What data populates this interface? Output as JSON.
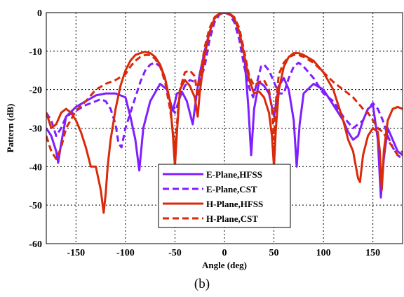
{
  "caption": "(b)",
  "chart_data": {
    "type": "line",
    "xlabel": "Angle (deg)",
    "ylabel": "Pattern (dB)",
    "xlim": [
      -180,
      180
    ],
    "ylim": [
      -60,
      0
    ],
    "xticks": [
      -150,
      -100,
      -50,
      0,
      50,
      100,
      150
    ],
    "yticks": [
      0,
      -10,
      -20,
      -30,
      -40,
      -50,
      -60
    ],
    "grid": true,
    "legend_position": "lower-center",
    "series": [
      {
        "name": "E-Plane,HFSS",
        "color": "#7f1fff",
        "style": "solid",
        "x": [
          -180,
          -175,
          -170,
          -168,
          -165,
          -160,
          -150,
          -140,
          -130,
          -120,
          -110,
          -100,
          -95,
          -90,
          -86,
          -82,
          -75,
          -65,
          -58,
          -55,
          -52,
          -48,
          -43,
          -38,
          -32,
          -28,
          -25,
          -20,
          -15,
          -10,
          -5,
          0,
          5,
          10,
          15,
          20,
          24,
          27,
          30,
          35,
          40,
          45,
          50,
          55,
          60,
          65,
          70,
          73,
          76,
          80,
          90,
          100,
          110,
          120,
          125,
          130,
          135,
          140,
          145,
          150,
          155,
          158,
          161,
          165,
          170,
          175,
          180
        ],
        "y": [
          -30,
          -32,
          -36,
          -39,
          -34,
          -27,
          -24.5,
          -23,
          -21.5,
          -21,
          -21,
          -22,
          -27,
          -33,
          -41,
          -30,
          -23,
          -18.5,
          -20,
          -23,
          -25.5,
          -21,
          -20.5,
          -23,
          -29,
          -21,
          -16,
          -10,
          -5,
          -1.5,
          -0.3,
          0,
          -0.3,
          -1.5,
          -5,
          -11,
          -24,
          -37,
          -25,
          -18,
          -19,
          -21,
          -27,
          -19,
          -17,
          -20,
          -28,
          -40,
          -29,
          -21,
          -18.5,
          -20,
          -24,
          -28,
          -31,
          -33,
          -32,
          -28,
          -25,
          -24,
          -33,
          -48,
          -38,
          -30,
          -33,
          -36,
          -37
        ]
      },
      {
        "name": "E-Plane,CST",
        "color": "#7f1fff",
        "style": "dashed",
        "x": [
          -180,
          -175,
          -170,
          -165,
          -160,
          -150,
          -140,
          -130,
          -125,
          -120,
          -115,
          -110,
          -107,
          -104,
          -100,
          -95,
          -90,
          -85,
          -80,
          -75,
          -70,
          -65,
          -60,
          -57,
          -53,
          -50,
          -45,
          -40,
          -35,
          -30,
          -25,
          -20,
          -15,
          -10,
          -5,
          0,
          5,
          10,
          15,
          20,
          25,
          29,
          33,
          37,
          40,
          45,
          50,
          55,
          60,
          65,
          70,
          75,
          80,
          90,
          100,
          110,
          120,
          130,
          140,
          145,
          150,
          155,
          160,
          165,
          170,
          175,
          180
        ],
        "y": [
          -26,
          -28,
          -32,
          -30,
          -27,
          -25.5,
          -24,
          -23,
          -22.5,
          -23,
          -25,
          -29,
          -34,
          -35,
          -30,
          -26,
          -22,
          -18,
          -15,
          -13.5,
          -13,
          -14,
          -17,
          -21,
          -25,
          -26,
          -22,
          -19,
          -17.5,
          -18,
          -18,
          -14,
          -7,
          -2.5,
          -0.5,
          0,
          -0.5,
          -2.5,
          -7,
          -14,
          -19.5,
          -22,
          -18,
          -14,
          -13.5,
          -15,
          -18,
          -21,
          -21,
          -17,
          -14,
          -13,
          -14,
          -17,
          -21,
          -23,
          -27,
          -30,
          -28,
          -25,
          -23.5,
          -25,
          -28,
          -32,
          -35,
          -37,
          -38
        ]
      },
      {
        "name": "H-Plane,HFSS",
        "color": "#d92a0a",
        "style": "solid",
        "x": [
          -180,
          -175,
          -170,
          -165,
          -160,
          -155,
          -150,
          -145,
          -140,
          -135,
          -130,
          -125,
          -122,
          -120,
          -118,
          -115,
          -110,
          -105,
          -100,
          -95,
          -90,
          -85,
          -80,
          -75,
          -70,
          -65,
          -60,
          -55,
          -52,
          -50,
          -48,
          -45,
          -40,
          -35,
          -30,
          -27,
          -25,
          -20,
          -15,
          -10,
          -5,
          0,
          5,
          10,
          15,
          20,
          25,
          30,
          35,
          40,
          45,
          48,
          50,
          52,
          55,
          60,
          65,
          70,
          75,
          80,
          90,
          100,
          110,
          120,
          125,
          130,
          135,
          137,
          140,
          145,
          150,
          155,
          157,
          159,
          161,
          165,
          170,
          175,
          180
        ],
        "y": [
          -26,
          -30,
          -29,
          -26,
          -25,
          -26,
          -28,
          -31,
          -35,
          -40,
          -40,
          -46,
          -52,
          -47,
          -40,
          -33,
          -25,
          -19,
          -15,
          -12.5,
          -11,
          -10.5,
          -10.2,
          -10.5,
          -11.5,
          -13.5,
          -17,
          -23,
          -32,
          -40,
          -31,
          -20,
          -17.5,
          -19,
          -22,
          -27,
          -21,
          -11,
          -5,
          -1.5,
          -0.3,
          0,
          -0.3,
          -1.5,
          -5,
          -11,
          -17.5,
          -21,
          -20.5,
          -22,
          -26,
          -32,
          -40,
          -30,
          -20,
          -14,
          -11.5,
          -10.5,
          -10.5,
          -11,
          -12.5,
          -15.5,
          -20,
          -28,
          -33,
          -36,
          -43,
          -44,
          -37,
          -32,
          -30,
          -31,
          -36,
          -46,
          -36,
          -28,
          -25,
          -24.5,
          -25
        ]
      },
      {
        "name": "H-Plane,CST",
        "color": "#d92a0a",
        "style": "dashed",
        "x": [
          -180,
          -175,
          -170,
          -165,
          -160,
          -150,
          -140,
          -130,
          -120,
          -110,
          -100,
          -95,
          -90,
          -85,
          -80,
          -75,
          -70,
          -65,
          -60,
          -55,
          -50,
          -45,
          -40,
          -35,
          -30,
          -27,
          -25,
          -20,
          -15,
          -10,
          -5,
          0,
          5,
          10,
          15,
          20,
          25,
          30,
          35,
          40,
          45,
          48,
          50,
          52,
          55,
          60,
          65,
          70,
          75,
          80,
          90,
          100,
          110,
          120,
          130,
          140,
          145,
          150,
          155,
          160,
          165,
          170,
          175,
          180
        ],
        "y": [
          -32,
          -36,
          -38,
          -35,
          -30,
          -25.5,
          -23,
          -20,
          -18.5,
          -17.5,
          -16,
          -14,
          -12.5,
          -11.5,
          -11,
          -11,
          -12,
          -14,
          -18,
          -25,
          -35,
          -20,
          -15.5,
          -15,
          -16.5,
          -22,
          -17,
          -9,
          -4,
          -1.2,
          -0.2,
          0,
          -0.2,
          -1.2,
          -4,
          -10,
          -16.5,
          -19,
          -18,
          -17.5,
          -20,
          -25,
          -33,
          -23,
          -16,
          -13,
          -11.5,
          -11,
          -11,
          -11.5,
          -13,
          -15.5,
          -18,
          -20,
          -22,
          -25,
          -26,
          -28,
          -30,
          -31,
          -33,
          -35,
          -37,
          -36
        ]
      }
    ]
  }
}
